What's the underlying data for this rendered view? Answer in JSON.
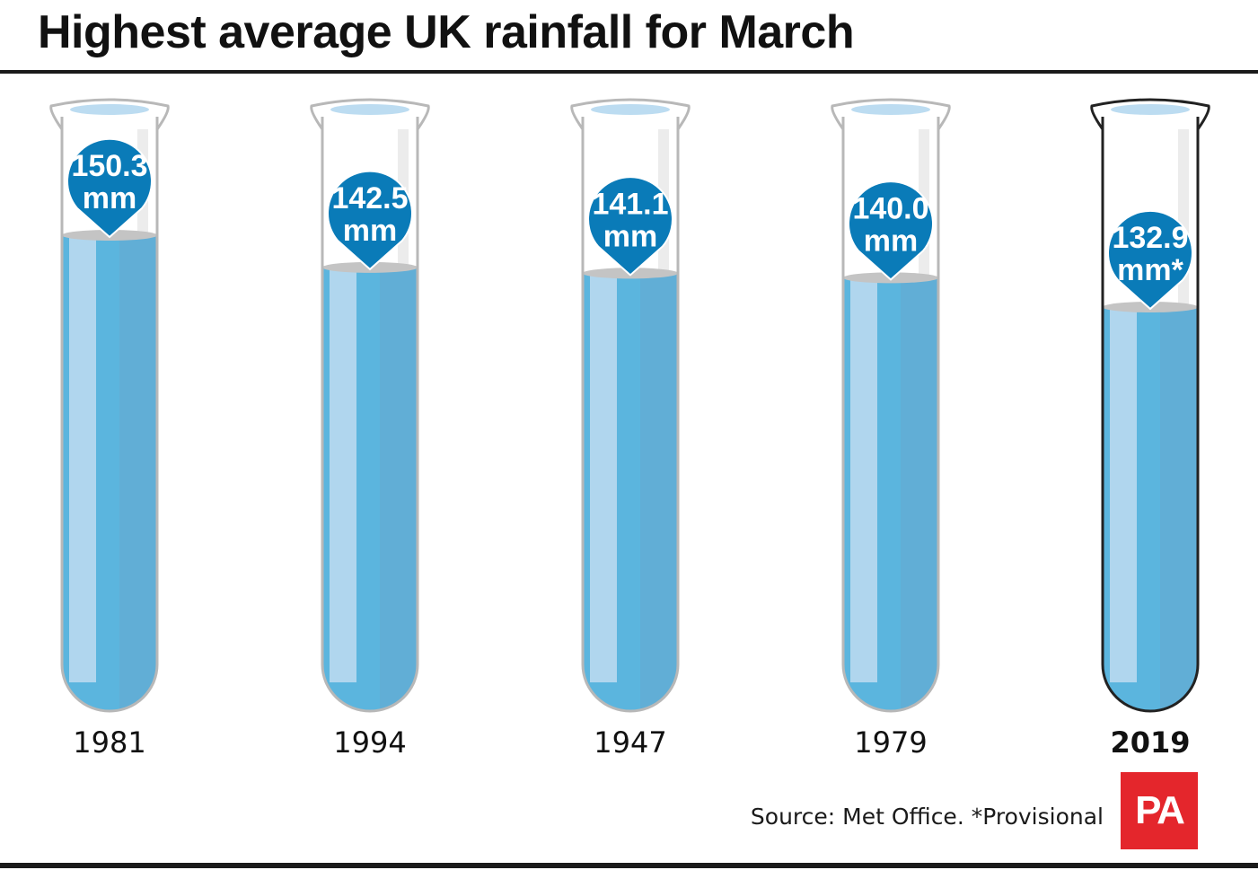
{
  "title": "Highest average UK rainfall for March",
  "source": "Source: Met Office. *Provisional",
  "logo_text": "PA",
  "colors": {
    "water": "#5bb5de",
    "water_light": "#b0d6ee",
    "water_right": "#61aed6",
    "badge": "#0a7bb8",
    "tube_outline": "#b8b8b8",
    "tube_outline_highlight": "#222222",
    "logo": "#e4262c"
  },
  "chart_data": {
    "type": "bar",
    "title": "Highest average UK rainfall for March",
    "unit": "mm",
    "categories": [
      "1981",
      "1994",
      "1947",
      "1979",
      "2019"
    ],
    "values": [
      150.3,
      142.5,
      141.1,
      140.0,
      132.9
    ],
    "value_labels": [
      [
        "150.3",
        "mm"
      ],
      [
        "142.5",
        "mm"
      ],
      [
        "141.1",
        "mm"
      ],
      [
        "140.0",
        "mm"
      ],
      [
        "132.9",
        "mm*"
      ]
    ],
    "highlighted_category": "2019"
  }
}
